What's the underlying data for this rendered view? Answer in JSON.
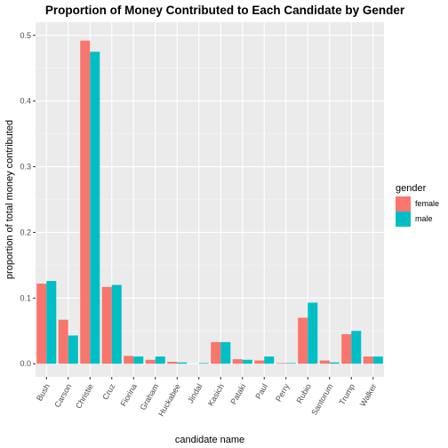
{
  "chart_data": {
    "type": "bar",
    "title": "Proportion of Money Contributed to Each Candidate by Gender",
    "xlabel": "candidate name",
    "ylabel": "proportion of total money contributed",
    "categories": [
      "Bush",
      "Carson",
      "Christie",
      "Cruz",
      "Fiorina",
      "Graham",
      "Huckabee",
      "Jindal",
      "Kasich",
      "Pataki",
      "Paul",
      "Perry",
      "Rubio",
      "Santorum",
      "Trump",
      "Walker"
    ],
    "series": [
      {
        "name": "female",
        "color": "#F8766D",
        "values": [
          0.122,
          0.067,
          0.492,
          0.117,
          0.012,
          0.006,
          0.003,
          0.0,
          0.033,
          0.007,
          0.005,
          0.001,
          0.07,
          0.005,
          0.045,
          0.011
        ]
      },
      {
        "name": "male",
        "color": "#00BFC4",
        "values": [
          0.126,
          0.043,
          0.475,
          0.12,
          0.011,
          0.011,
          0.002,
          0.001,
          0.033,
          0.006,
          0.011,
          0.001,
          0.093,
          0.002,
          0.05,
          0.011
        ]
      }
    ],
    "ylim": [
      -0.02,
      0.52
    ],
    "yticks": [
      0.0,
      0.1,
      0.2,
      0.3,
      0.4,
      0.5
    ],
    "ytick_labels": [
      "0.0",
      "0.1",
      "0.2",
      "0.3",
      "0.4",
      "0.5"
    ],
    "grid": true,
    "legend": {
      "title": "gender",
      "position": "right"
    }
  }
}
